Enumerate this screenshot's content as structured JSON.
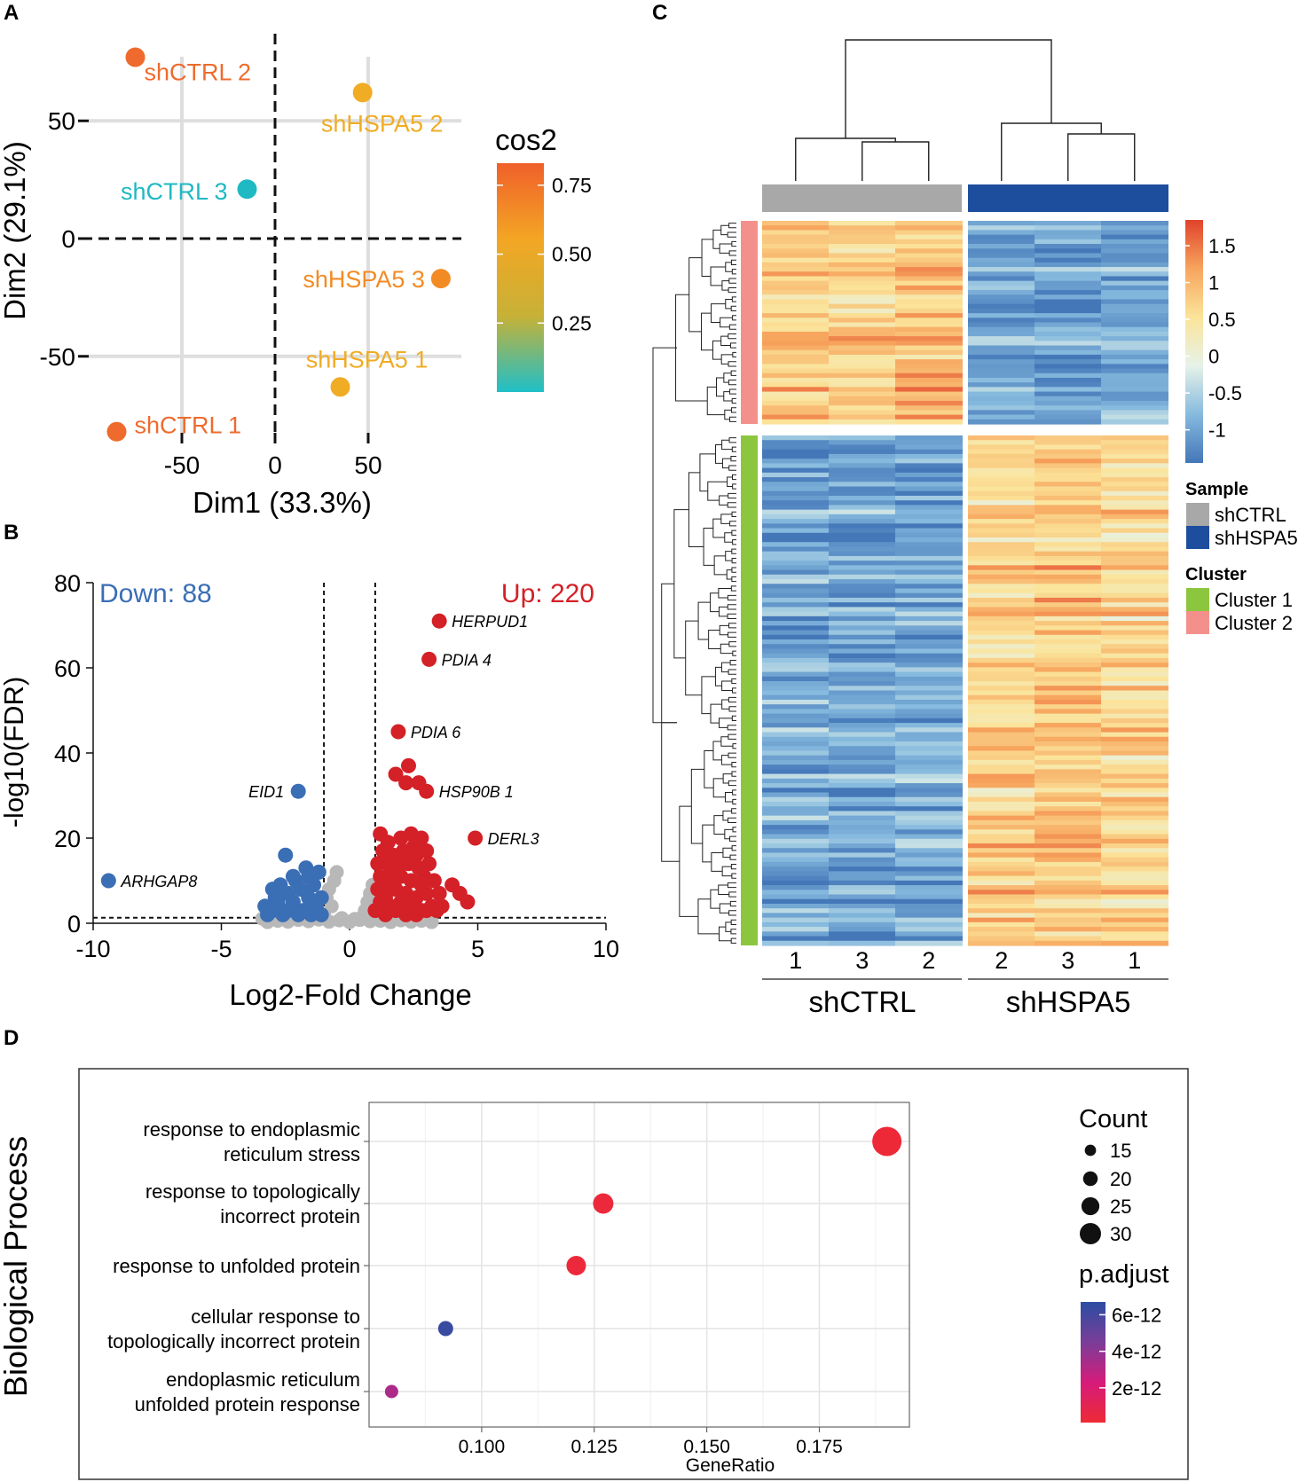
{
  "figure": {
    "panel_labels": [
      "A",
      "B",
      "C",
      "D"
    ]
  },
  "chart_data": [
    {
      "panel": "A",
      "type": "scatter",
      "xlabel": "Dim1 (33.3%)",
      "ylabel": "Dim2 (29.1%)",
      "xlim": [
        -100,
        100
      ],
      "ylim": [
        -87,
        87
      ],
      "xticks": [
        -50,
        0,
        50
      ],
      "yticks": [
        -50,
        0,
        50
      ],
      "points": [
        {
          "label": "shCTRL 2",
          "x": -75,
          "y": 77,
          "cos2": 0.78,
          "color": "#ee6b2d"
        },
        {
          "label": "shHSPA5 2",
          "x": 47,
          "y": 62,
          "cos2": 0.57,
          "color": "#f0ac25"
        },
        {
          "label": "shCTRL 3",
          "x": -15,
          "y": 21,
          "cos2": 0.02,
          "color": "#1fb9c3"
        },
        {
          "label": "shHSPA5 3",
          "x": 89,
          "y": -17,
          "cos2": 0.65,
          "color": "#f38b24"
        },
        {
          "label": "shHSPA5 1",
          "x": 35,
          "y": -63,
          "cos2": 0.57,
          "color": "#f0ac25"
        },
        {
          "label": "shCTRL 1",
          "x": -85,
          "y": -82,
          "cos2": 0.8,
          "color": "#ee6b2d"
        }
      ],
      "legend": {
        "title": "cos2",
        "ticks": [
          "0.75",
          "0.50",
          "0.25"
        ],
        "tick_values": [
          0.75,
          0.5,
          0.25
        ],
        "range": [
          0.0,
          0.83
        ],
        "colors": [
          "#1fbfc8",
          "#c7b136",
          "#f3a624",
          "#f0602a"
        ]
      }
    },
    {
      "panel": "B",
      "type": "scatter",
      "xlabel": "Log2-Fold Change",
      "ylabel": "-log10(FDR)",
      "xlim": [
        -10,
        10
      ],
      "ylim": [
        0,
        80
      ],
      "xticks": [
        -10,
        -5,
        0,
        5,
        10
      ],
      "yticks": [
        0,
        20,
        40,
        60,
        80
      ],
      "thresholds": {
        "logfc": [
          -1,
          1
        ],
        "fdr": 1.3
      },
      "down_label": "Down: 88",
      "up_label": "Up: 220",
      "colors": {
        "up": "#d42027",
        "down": "#3a6eb5",
        "ns": "#b8b8b8"
      },
      "labeled_genes": [
        {
          "label": "HERPUD1",
          "x": 3.5,
          "y": 71,
          "group": "up"
        },
        {
          "label": "PDIA 4",
          "x": 3.1,
          "y": 62,
          "group": "up"
        },
        {
          "label": "PDIA 6",
          "x": 1.9,
          "y": 45,
          "group": "up"
        },
        {
          "label": "HSP90B 1",
          "x": 3.0,
          "y": 31,
          "group": "up"
        },
        {
          "label": "DERL3",
          "x": 4.9,
          "y": 20,
          "group": "up"
        },
        {
          "label": "EID1",
          "x": -2.0,
          "y": 31,
          "group": "down"
        },
        {
          "label": "ARHGAP8",
          "x": -9.4,
          "y": 10,
          "group": "down"
        }
      ],
      "up_points": [
        [
          2.3,
          37
        ],
        [
          1.8,
          35
        ],
        [
          2.2,
          33
        ],
        [
          2.7,
          33
        ],
        [
          1.2,
          21
        ],
        [
          1.5,
          19
        ],
        [
          2.0,
          20
        ],
        [
          2.4,
          21
        ],
        [
          2.8,
          20
        ],
        [
          1.3,
          17
        ],
        [
          1.7,
          16
        ],
        [
          2.1,
          17
        ],
        [
          2.5,
          18
        ],
        [
          3.0,
          17
        ],
        [
          1.1,
          14
        ],
        [
          1.5,
          14
        ],
        [
          1.9,
          13
        ],
        [
          2.3,
          14
        ],
        [
          2.7,
          13
        ],
        [
          3.1,
          14
        ],
        [
          1.2,
          11
        ],
        [
          1.6,
          10
        ],
        [
          2.0,
          11
        ],
        [
          2.4,
          10
        ],
        [
          2.8,
          9
        ],
        [
          3.3,
          10
        ],
        [
          1.1,
          8
        ],
        [
          1.4,
          7
        ],
        [
          1.8,
          8
        ],
        [
          2.2,
          7
        ],
        [
          2.6,
          6
        ],
        [
          3.0,
          7
        ],
        [
          3.5,
          7
        ],
        [
          4.0,
          9
        ],
        [
          4.3,
          7
        ],
        [
          4.6,
          5
        ],
        [
          1.2,
          5
        ],
        [
          1.6,
          4
        ],
        [
          2.0,
          5
        ],
        [
          2.4,
          4
        ],
        [
          2.8,
          3
        ],
        [
          3.2,
          4
        ],
        [
          3.6,
          4
        ],
        [
          1.0,
          3
        ],
        [
          1.4,
          2
        ],
        [
          1.8,
          3
        ],
        [
          2.2,
          2
        ],
        [
          2.6,
          2
        ],
        [
          3.0,
          3
        ],
        [
          3.4,
          3
        ],
        [
          1.6,
          12
        ],
        [
          2.9,
          11
        ],
        [
          1.3,
          9
        ],
        [
          2.1,
          15
        ],
        [
          2.6,
          16
        ],
        [
          1.4,
          6
        ]
      ],
      "down_points": [
        [
          -2.5,
          16
        ],
        [
          -1.2,
          12
        ],
        [
          -1.6,
          11
        ],
        [
          -2.1,
          10
        ],
        [
          -2.7,
          9
        ],
        [
          -1.4,
          9
        ],
        [
          -1.9,
          8
        ],
        [
          -2.4,
          7
        ],
        [
          -3.0,
          8
        ],
        [
          -1.1,
          6
        ],
        [
          -1.6,
          6
        ],
        [
          -2.2,
          5
        ],
        [
          -2.8,
          5
        ],
        [
          -3.3,
          4
        ],
        [
          -1.3,
          4
        ],
        [
          -1.8,
          3
        ],
        [
          -2.4,
          3
        ],
        [
          -3.0,
          3
        ],
        [
          -1.1,
          2
        ],
        [
          -2.0,
          2
        ],
        [
          -2.6,
          2
        ],
        [
          -3.2,
          2
        ],
        [
          -1.5,
          2
        ],
        [
          -2.2,
          11
        ],
        [
          -1.7,
          13
        ],
        [
          -2.9,
          6
        ]
      ],
      "ns_points": [
        [
          -3.2,
          0.3
        ],
        [
          -2.8,
          0.6
        ],
        [
          -2.4,
          0.4
        ],
        [
          -2.0,
          0.8
        ],
        [
          -1.6,
          0.5
        ],
        [
          -1.2,
          0.9
        ],
        [
          -0.8,
          0.4
        ],
        [
          -0.4,
          0.7
        ],
        [
          0,
          0.3
        ],
        [
          0.4,
          0.8
        ],
        [
          0.8,
          0.5
        ],
        [
          1.2,
          0.6
        ],
        [
          1.6,
          0.3
        ],
        [
          2.0,
          0.7
        ],
        [
          2.4,
          0.4
        ],
        [
          2.8,
          0.6
        ],
        [
          3.2,
          0.3
        ],
        [
          -1.0,
          2
        ],
        [
          -0.7,
          4
        ],
        [
          -0.9,
          6
        ],
        [
          -0.8,
          8
        ],
        [
          -0.6,
          10
        ],
        [
          -0.5,
          12
        ],
        [
          0.6,
          3
        ],
        [
          0.7,
          5
        ],
        [
          0.8,
          7
        ],
        [
          0.9,
          9
        ],
        [
          0.5,
          1.5
        ],
        [
          -0.3,
          1.2
        ],
        [
          0.2,
          1.0
        ],
        [
          -3.4,
          1.1
        ],
        [
          -2.6,
          1.0
        ],
        [
          -1.8,
          1.2
        ],
        [
          2.2,
          1.1
        ],
        [
          3.0,
          1.0
        ]
      ]
    },
    {
      "panel": "C",
      "type": "heatmap",
      "column_labels": [
        "1",
        "3",
        "2",
        "2",
        "3",
        "1"
      ],
      "group_labels": [
        "shCTRL",
        "shHSPA5"
      ],
      "legend_ticks": [
        "1.5",
        "1",
        "0.5",
        "0",
        "-0.5",
        "-1"
      ],
      "legend_tick_values": [
        1.5,
        1,
        0.5,
        0,
        -0.5,
        -1
      ],
      "color_range": [
        -1.45,
        1.85
      ],
      "colorscale": [
        "#4477b8",
        "#86bade",
        "#e6f2e8",
        "#fbe49a",
        "#f7a45d",
        "#e0432c"
      ],
      "sample_legend": {
        "title": "Sample",
        "items": [
          {
            "label": "shCTRL",
            "color": "#a8a8a8"
          },
          {
            "label": "shHSPA5",
            "color": "#1d4e9e"
          }
        ]
      },
      "cluster_legend": {
        "title": "Cluster",
        "items": [
          {
            "label": "Cluster 1",
            "color": "#8cc63e"
          },
          {
            "label": "Cluster 2",
            "color": "#f4908c"
          }
        ]
      },
      "clusters": [
        {
          "name": "Cluster 2",
          "rows": 44,
          "means": [
            0.85,
            0.75,
            1.0,
            -0.95,
            -0.95,
            -0.85
          ]
        },
        {
          "name": "Cluster 1",
          "rows": 110,
          "means": [
            -0.95,
            -0.95,
            -0.95,
            0.75,
            0.85,
            0.65
          ]
        }
      ]
    },
    {
      "panel": "D",
      "type": "scatter",
      "xlabel": "GeneRatio",
      "ylabel": "Biological Process",
      "xlim": [
        0.075,
        0.195
      ],
      "xticks": [
        "0.100",
        "0.125",
        "0.150",
        "0.175"
      ],
      "xtick_values": [
        0.1,
        0.125,
        0.15,
        0.175
      ],
      "terms": [
        {
          "lines": [
            "response to endoplasmic",
            "reticulum stress"
          ],
          "gene_ratio": 0.19,
          "count": 31,
          "p_adjust": 2e-13
        },
        {
          "lines": [
            "response to topologically",
            "incorrect protein"
          ],
          "gene_ratio": 0.127,
          "count": 21,
          "p_adjust": 3e-13
        },
        {
          "lines": [
            "response to unfolded protein"
          ],
          "gene_ratio": 0.121,
          "count": 20,
          "p_adjust": 3e-13
        },
        {
          "lines": [
            "cellular response to",
            "topologically incorrect protein"
          ],
          "gene_ratio": 0.092,
          "count": 15,
          "p_adjust": 6.3e-12
        },
        {
          "lines": [
            "endoplasmic reticulum",
            "unfolded protein response"
          ],
          "gene_ratio": 0.08,
          "count": 13,
          "p_adjust": 3.3e-12
        }
      ],
      "size_legend": {
        "title": "Count",
        "values": [
          15,
          20,
          25,
          30
        ]
      },
      "color_legend": {
        "title": "p.adjust",
        "ticks": [
          "6e-12",
          "4e-12",
          "2e-12"
        ],
        "tick_values": [
          6e-12,
          4e-12,
          2e-12
        ],
        "range": [
          1e-13,
          6.7e-12
        ],
        "colors": [
          "#ee2a35",
          "#d61b7b",
          "#7a3d98",
          "#2b4da3"
        ]
      }
    }
  ]
}
